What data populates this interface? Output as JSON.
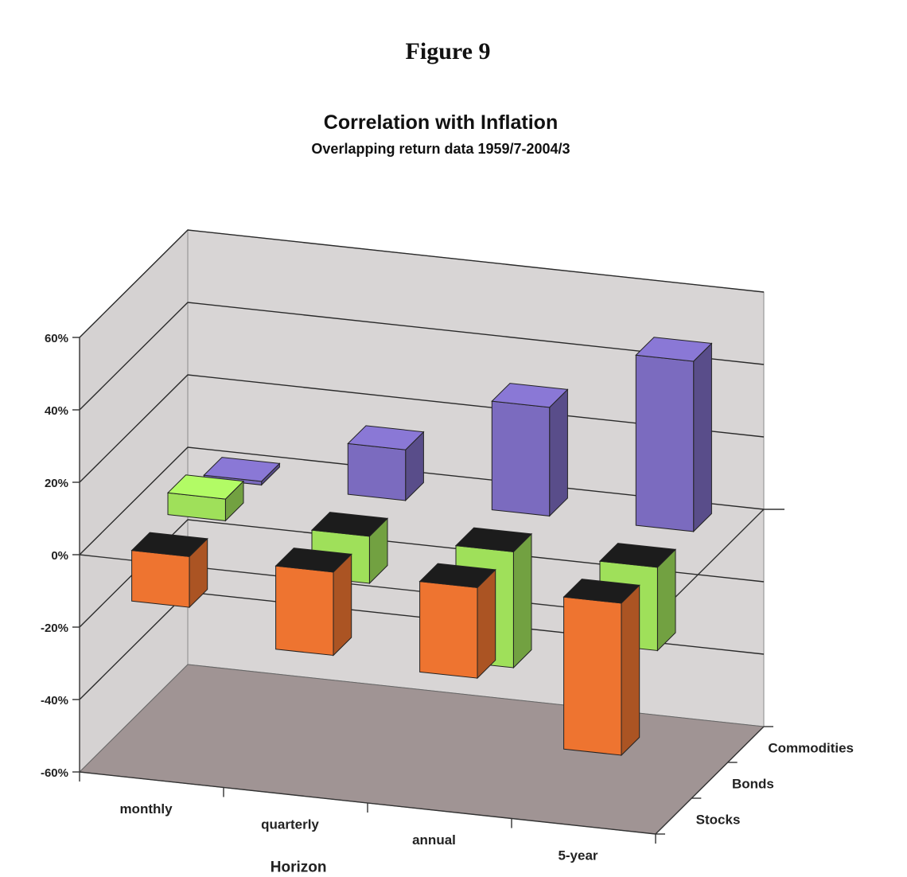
{
  "figure_label": "Figure 9",
  "chart_data": {
    "type": "bar",
    "title": "Correlation with Inflation",
    "subtitle": "Overlapping return data 1959/7-2004/3",
    "xlabel": "Horizon",
    "ylabel": "",
    "categories": [
      "monthly",
      "quarterly",
      "annual",
      "5-year"
    ],
    "y_ticks": [
      "60%",
      "40%",
      "20%",
      "0%",
      "-20%",
      "-40%",
      "-60%"
    ],
    "ylim": [
      -60,
      60
    ],
    "depth_labels": [
      "Stocks",
      "Bonds",
      "Commodities"
    ],
    "series": [
      {
        "name": "Stocks",
        "values": [
          -14,
          -23,
          -25,
          -42
        ]
      },
      {
        "name": "Bonds",
        "values": [
          6,
          -13,
          -32,
          -23
        ]
      },
      {
        "name": "Commodities",
        "values": [
          1,
          14,
          30,
          47
        ]
      }
    ],
    "colors": {
      "Stocks": "#ee7430",
      "Bonds": "#9fe05a",
      "Commodities": "#7b6bbf"
    },
    "grid": true
  }
}
